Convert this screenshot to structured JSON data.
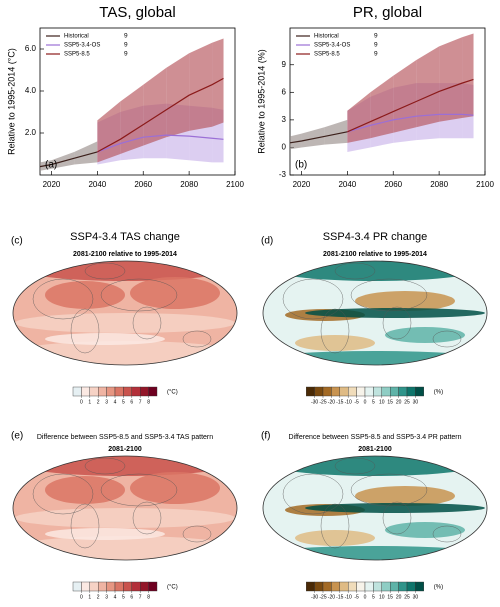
{
  "chart_data": [
    {
      "type": "line",
      "title": "TAS, global",
      "panel": "(a)",
      "ylabel": "Relative to 1995-2014 (°C)",
      "x": [
        2015,
        2020,
        2030,
        2040,
        2050,
        2060,
        2070,
        2080,
        2090,
        2095
      ],
      "xlim": [
        2015,
        2100
      ],
      "xticks": [
        2020,
        2040,
        2060,
        2080,
        2100
      ],
      "ylim": [
        0,
        7
      ],
      "yticks": [
        {
          "value": 2,
          "label": "2.0"
        },
        {
          "value": 4,
          "label": "4.0"
        },
        {
          "value": 6,
          "label": "6.0"
        }
      ],
      "series": [
        {
          "name": "Historical",
          "members": 9,
          "color": "#3b1f1a",
          "band_color": "#9a8f8c",
          "values": [
            0.4,
            0.5,
            0.8,
            1.1,
            null,
            null,
            null,
            null,
            null,
            null
          ],
          "low": [
            0.2,
            0.3,
            0.5,
            0.6,
            null,
            null,
            null,
            null,
            null,
            null
          ],
          "high": [
            0.6,
            0.7,
            1.1,
            1.6,
            null,
            null,
            null,
            null,
            null,
            null
          ]
        },
        {
          "name": "SSP5-3.4-OS",
          "members": 9,
          "color": "#9b6fd6",
          "band_color": "#c9b4ea",
          "values": [
            null,
            null,
            null,
            1.1,
            1.5,
            1.8,
            1.9,
            1.85,
            1.75,
            1.7
          ],
          "low": [
            null,
            null,
            null,
            0.5,
            0.7,
            0.8,
            0.8,
            0.7,
            0.6,
            0.6
          ],
          "high": [
            null,
            null,
            null,
            2.5,
            3.0,
            3.3,
            3.4,
            3.3,
            3.2,
            3.1
          ]
        },
        {
          "name": "SSP5-8.5",
          "members": 9,
          "color": "#8b1a1a",
          "band_color": "#b5535a",
          "values": [
            null,
            null,
            null,
            1.1,
            1.7,
            2.4,
            3.1,
            3.8,
            4.3,
            4.6
          ],
          "low": [
            null,
            null,
            null,
            0.6,
            1.0,
            1.4,
            1.8,
            2.1,
            2.3,
            2.5
          ],
          "high": [
            null,
            null,
            null,
            2.6,
            3.5,
            4.3,
            5.1,
            5.8,
            6.3,
            6.5
          ]
        }
      ]
    },
    {
      "type": "line",
      "title": "PR, global",
      "panel": "(b)",
      "ylabel": "Relative to 1995-2014 (%)",
      "x": [
        2015,
        2020,
        2030,
        2040,
        2050,
        2060,
        2070,
        2080,
        2090,
        2095
      ],
      "xlim": [
        2015,
        2100
      ],
      "xticks": [
        2020,
        2040,
        2060,
        2080,
        2100
      ],
      "ylim": [
        -3,
        13
      ],
      "yticks": [
        -3,
        0,
        3,
        6,
        9
      ],
      "series": [
        {
          "name": "Historical",
          "members": 9,
          "color": "#3b1f1a",
          "band_color": "#9a8f8c",
          "values": [
            0.5,
            0.7,
            1.2,
            1.7,
            null,
            null,
            null,
            null,
            null,
            null
          ],
          "low": [
            -0.2,
            0,
            0.3,
            0.5,
            null,
            null,
            null,
            null,
            null,
            null
          ],
          "high": [
            1.2,
            1.5,
            2.2,
            3.0,
            null,
            null,
            null,
            null,
            null,
            null
          ]
        },
        {
          "name": "SSP5-3.4-OS",
          "members": 9,
          "color": "#9b6fd6",
          "band_color": "#c9b4ea",
          "values": [
            null,
            null,
            null,
            1.7,
            2.4,
            3.0,
            3.4,
            3.6,
            3.6,
            3.5
          ],
          "low": [
            null,
            null,
            null,
            -0.5,
            0,
            0.5,
            0.8,
            1.0,
            1.0,
            1.0
          ],
          "high": [
            null,
            null,
            null,
            4.0,
            5.5,
            6.5,
            7.0,
            7.0,
            7.0,
            6.8
          ]
        },
        {
          "name": "SSP5-8.5",
          "members": 9,
          "color": "#8b1a1a",
          "band_color": "#b5535a",
          "values": [
            null,
            null,
            null,
            1.7,
            2.8,
            3.9,
            5.0,
            6.1,
            7.0,
            7.4
          ],
          "low": [
            null,
            null,
            null,
            0.5,
            1.0,
            1.6,
            2.2,
            2.8,
            3.2,
            3.4
          ],
          "high": [
            null,
            null,
            null,
            4.0,
            6.0,
            7.8,
            9.5,
            11.0,
            12.0,
            12.4
          ]
        }
      ]
    },
    {
      "type": "map",
      "heading": "SSP4-3.4 TAS change",
      "title": "2081-2100 relative to 1995-2014",
      "panel": "(c)",
      "colorbar": {
        "ticks": [
          0,
          1,
          2,
          3,
          4,
          5,
          6,
          7,
          8
        ],
        "unit": "(°C)",
        "colors": [
          "#e6f0f3",
          "#fbe9e3",
          "#f6d2c5",
          "#efb4a3",
          "#e69682",
          "#da7565",
          "#c9534d",
          "#b3303a",
          "#931629",
          "#6e0020"
        ]
      }
    },
    {
      "type": "map",
      "heading": "SSP4-3.4 PR change",
      "title": "2081-2100 relative to 1995-2014",
      "panel": "(d)",
      "colorbar": {
        "ticks": [
          -30,
          -25,
          -20,
          -15,
          -10,
          -5,
          0,
          5,
          10,
          15,
          20,
          25,
          30
        ],
        "unit": "(%)",
        "colors": [
          "#4a2a06",
          "#7a4a10",
          "#a36a25",
          "#c89350",
          "#dfbb85",
          "#f0dcba",
          "#f7f3ea",
          "#e5f3f1",
          "#bfe3de",
          "#8fcdc4",
          "#5fb3a8",
          "#2f948a",
          "#0e756b",
          "#004f47"
        ]
      }
    },
    {
      "type": "map",
      "title": "Difference between SSP5-8.5 and SSP5-3.4 TAS pattern",
      "subtitle": "2081-2100",
      "panel": "(e)",
      "colorbar": {
        "ticks": [
          0,
          1,
          2,
          3,
          4,
          5,
          6,
          7,
          8
        ],
        "unit": "(°C)",
        "colors": [
          "#e6f0f3",
          "#fbe9e3",
          "#f6d2c5",
          "#efb4a3",
          "#e69682",
          "#da7565",
          "#c9534d",
          "#b3303a",
          "#931629",
          "#6e0020"
        ]
      }
    },
    {
      "type": "map",
      "title": "Difference between SSP5-8.5 and SSP5-3.4 PR pattern",
      "subtitle": "2081-2100",
      "panel": "(f)",
      "colorbar": {
        "ticks": [
          -30,
          -25,
          -20,
          -15,
          -10,
          -5,
          0,
          5,
          10,
          15,
          20,
          25,
          30
        ],
        "unit": "(%)",
        "colors": [
          "#4a2a06",
          "#7a4a10",
          "#a36a25",
          "#c89350",
          "#dfbb85",
          "#f0dcba",
          "#f7f3ea",
          "#e5f3f1",
          "#bfe3de",
          "#8fcdc4",
          "#5fb3a8",
          "#2f948a",
          "#0e756b",
          "#004f47"
        ]
      }
    }
  ]
}
